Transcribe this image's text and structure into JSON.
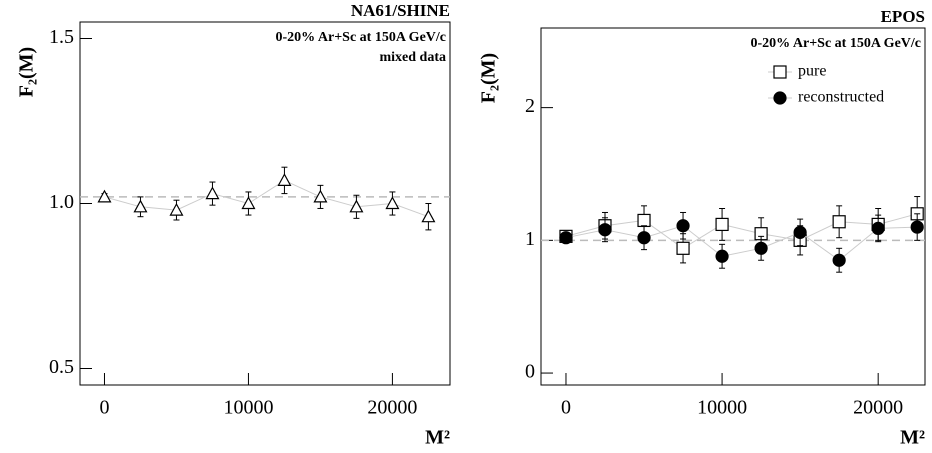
{
  "chart_data": [
    {
      "type": "errorbar",
      "title": "NA61/SHINE",
      "annotations": [
        "0-20% Ar+Sc at 150A GeV/c",
        "mixed data"
      ],
      "y_label": "F₂(M)",
      "x_label": "M²",
      "x": [
        0,
        2500,
        5000,
        7500,
        10000,
        12500,
        15000,
        17500,
        20000,
        22500
      ],
      "series": [
        {
          "marker": "triangle-open",
          "color": "#000000",
          "values": [
            1.02,
            0.99,
            0.98,
            1.03,
            1.0,
            1.07,
            1.02,
            0.99,
            1.0,
            0.96
          ],
          "errors": [
            0.01,
            0.03,
            0.03,
            0.035,
            0.035,
            0.04,
            0.035,
            0.035,
            0.035,
            0.04
          ]
        }
      ],
      "reference_line": 1.02,
      "xlim": [
        -1700,
        24000
      ],
      "xticks": [
        0,
        10000,
        20000
      ],
      "ylim": [
        0.45,
        1.55
      ],
      "yticks": [
        0.5,
        {
          "value": 1,
          "label": "1.0"
        },
        1.5
      ]
    },
    {
      "type": "errorbar",
      "title": "EPOS",
      "annotations": [
        "0-20% Ar+Sc at 150A GeV/c"
      ],
      "y_label": "F₂(M)",
      "x_label": "M²",
      "x": [
        0,
        2500,
        5000,
        7500,
        10000,
        12500,
        15000,
        17500,
        20000,
        22500
      ],
      "series": [
        {
          "name": "pure",
          "marker": "square-open",
          "color": "#000000",
          "values": [
            1.03,
            1.11,
            1.15,
            0.94,
            1.12,
            1.05,
            1.0,
            1.14,
            1.12,
            1.2
          ],
          "errors": [
            0.03,
            0.1,
            0.11,
            0.11,
            0.12,
            0.12,
            0.11,
            0.12,
            0.12,
            0.13
          ]
        },
        {
          "name": "reconstructed",
          "marker": "circle-filled",
          "color": "#000000",
          "values": [
            1.02,
            1.08,
            1.02,
            1.11,
            0.88,
            0.94,
            1.06,
            0.85,
            1.09,
            1.1
          ],
          "errors": [
            0.03,
            0.09,
            0.09,
            0.1,
            0.09,
            0.09,
            0.1,
            0.09,
            0.1,
            0.1
          ]
        }
      ],
      "reference_line": 1,
      "xlim": [
        -1600,
        23000
      ],
      "xticks": [
        0,
        10000,
        20000
      ],
      "ylim": [
        -0.09,
        2.6
      ],
      "yticks": [
        0,
        1,
        2
      ]
    }
  ]
}
